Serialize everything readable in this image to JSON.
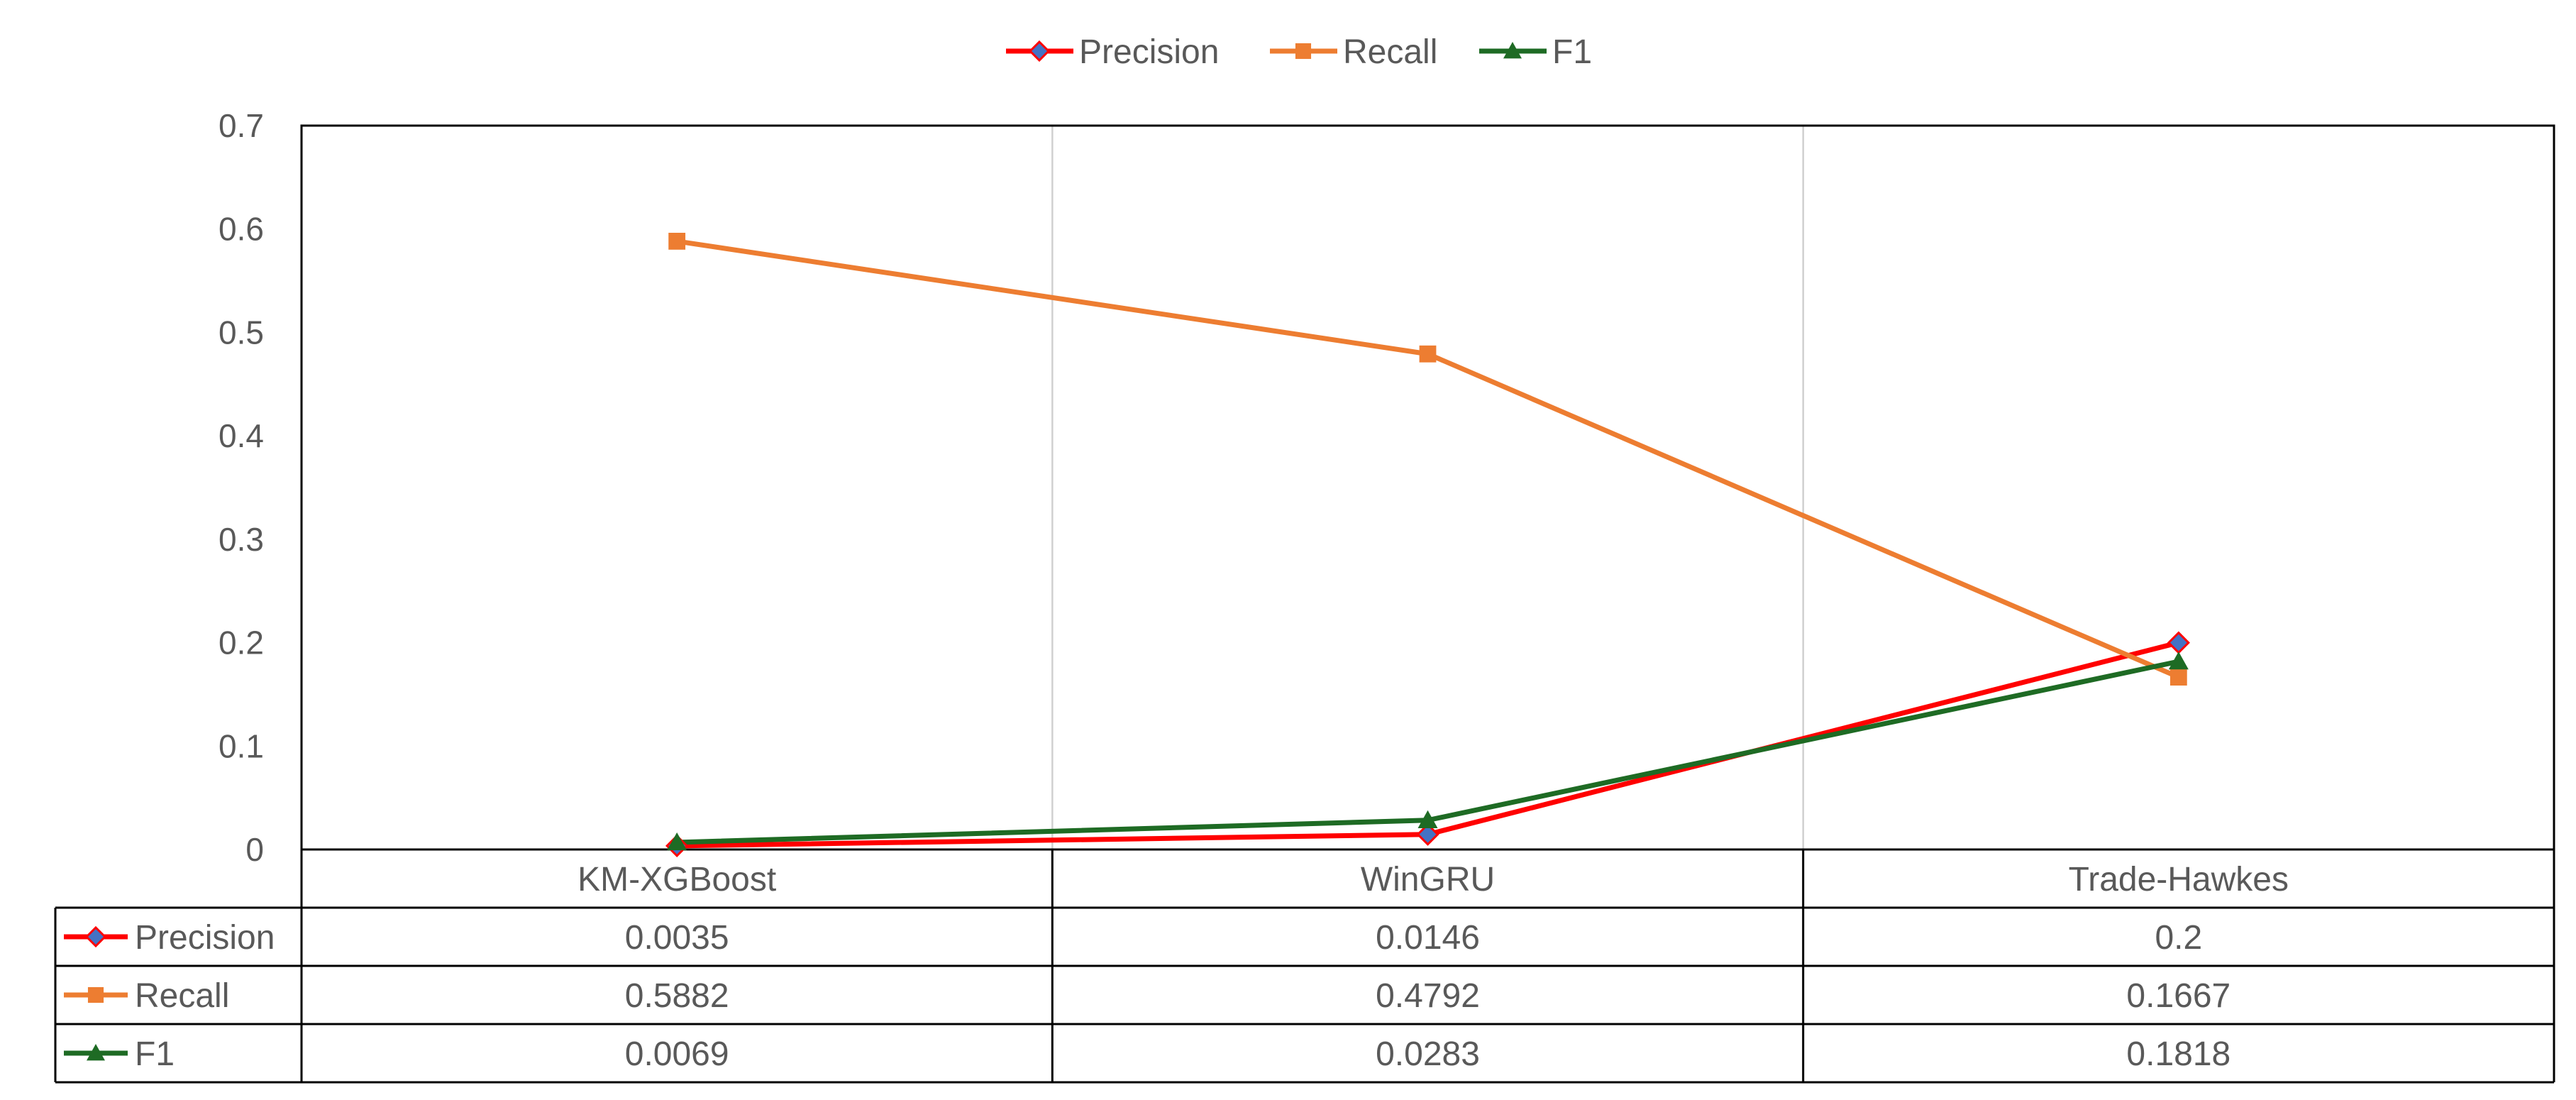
{
  "chart_data": {
    "type": "line",
    "categories": [
      "KM-XGBoost",
      "WinGRU",
      "Trade-Hawkes"
    ],
    "series": [
      {
        "name": "Precision",
        "values": [
          0.0035,
          0.0146,
          0.2
        ],
        "value_labels": [
          "0.0035",
          "0.0146",
          "0.2"
        ],
        "color": "#ff0000",
        "marker": "diamond",
        "marker_color": "#4472c4"
      },
      {
        "name": "Recall",
        "values": [
          0.5882,
          0.4792,
          0.1667
        ],
        "value_labels": [
          "0.5882",
          "0.4792",
          "0.1667"
        ],
        "color": "#ed7d31",
        "marker": "square",
        "marker_color": "#ed7d31"
      },
      {
        "name": "F1",
        "values": [
          0.0069,
          0.0283,
          0.1818
        ],
        "value_labels": [
          "0.0069",
          "0.0283",
          "0.1818"
        ],
        "color": "#1e6b24",
        "marker": "triangle",
        "marker_color": "#1e6b24"
      }
    ],
    "ylim": [
      0,
      0.7
    ],
    "yticks": [
      0,
      0.1,
      0.2,
      0.3,
      0.4,
      0.5,
      0.6,
      0.7
    ],
    "ytick_labels": [
      "0",
      "0.1",
      "0.2",
      "0.3",
      "0.4",
      "0.5",
      "0.6",
      "0.7"
    ],
    "title": "",
    "xlabel": "",
    "ylabel": "",
    "legend_position": "top-center",
    "vertical_gridlines": true,
    "horizontal_gridlines": false,
    "data_table": true
  },
  "colors": {
    "axis": "#000000",
    "gridline": "#d0d0d0",
    "text": "#595959"
  }
}
